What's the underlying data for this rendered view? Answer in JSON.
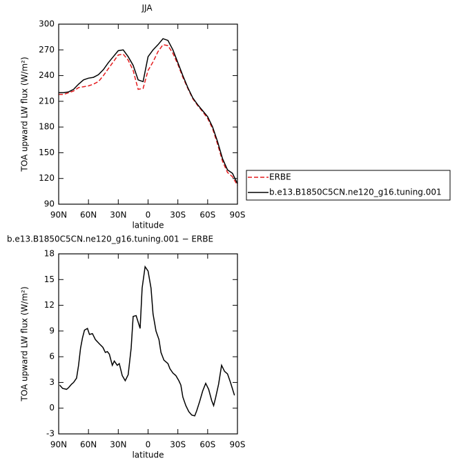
{
  "chart_data": [
    {
      "type": "line",
      "title": "JJA",
      "ylabel": "TOA upward LW flux (W/m²)",
      "xlabel": "latitude",
      "x": [
        90,
        85,
        80,
        75,
        70,
        65,
        60,
        55,
        50,
        45,
        40,
        35,
        30,
        25,
        20,
        15,
        10,
        5,
        0,
        -5,
        -10,
        -15,
        -20,
        -25,
        -30,
        -35,
        -40,
        -45,
        -50,
        -55,
        -60,
        -65,
        -70,
        -75,
        -80,
        -85,
        -90
      ],
      "series": [
        {
          "name": "ERBE",
          "color": "#e41a1c",
          "line_style": "dashed",
          "values": [
            218,
            218,
            220,
            222,
            226,
            227,
            228,
            230,
            233,
            240,
            248,
            256,
            264,
            265,
            258,
            246,
            224,
            225,
            246,
            256,
            268,
            276,
            275,
            266,
            253,
            238,
            225,
            213,
            205,
            198,
            190,
            178,
            160,
            140,
            127,
            122,
            112
          ]
        },
        {
          "name": "b.e13.B1850C5CN.ne120_g16.tuning.001",
          "color": "#000000",
          "line_style": "solid",
          "values": [
            220,
            220,
            221,
            224,
            230,
            235,
            237,
            238,
            241,
            247,
            255,
            262,
            269,
            270,
            262,
            252,
            235,
            233,
            262,
            270,
            276,
            283,
            281,
            270,
            255,
            240,
            226,
            214,
            206,
            199,
            192,
            180,
            163,
            143,
            130,
            126,
            114
          ]
        }
      ],
      "xlim": [
        90,
        -90
      ],
      "xticks": [
        {
          "value": 90,
          "label": "90N"
        },
        {
          "value": 60,
          "label": "60N"
        },
        {
          "value": 30,
          "label": "30N"
        },
        0,
        {
          "value": -30,
          "label": "30S"
        },
        {
          "value": -60,
          "label": "60S"
        },
        {
          "value": -90,
          "label": "90S"
        }
      ],
      "ylim": [
        90,
        300
      ],
      "yticks": [
        90,
        120,
        150,
        180,
        210,
        240,
        270,
        300
      ],
      "legend": "right"
    },
    {
      "type": "line",
      "title": "b.e13.B1850C5CN.ne120_g16.tuning.001 − ERBE",
      "ylabel": "TOA upward LW flux (W/m²)",
      "xlabel": "latitude",
      "x": [
        89,
        86,
        82,
        80,
        77,
        75,
        72,
        70,
        68,
        66,
        64,
        61,
        59,
        56,
        53,
        49,
        45.5,
        43,
        41,
        39,
        36,
        34,
        31,
        29,
        26,
        23,
        20,
        17,
        15,
        12,
        8,
        6,
        3,
        0,
        -3,
        -5,
        -8,
        -11,
        -13,
        -16,
        -20,
        -22,
        -25,
        -28,
        -31,
        -33,
        -35,
        -38,
        -41,
        -44,
        -47,
        -49,
        -52,
        -55,
        -58,
        -61,
        -64,
        -66,
        -68,
        -71,
        -74,
        -77,
        -80,
        -83,
        -87
      ],
      "series": [
        {
          "color": "#000000",
          "line_style": "solid",
          "values": [
            2.7,
            2.3,
            2.2,
            2.4,
            2.8,
            3.0,
            3.5,
            5,
            7,
            8.2,
            9.1,
            9.3,
            8.6,
            8.7,
            8,
            7.5,
            7.1,
            6.5,
            6.6,
            6.3,
            5.0,
            5.5,
            5.0,
            5.2,
            3.8,
            3.2,
            3.9,
            7,
            10.7,
            10.8,
            9.3,
            14,
            16.5,
            16,
            14,
            11,
            9,
            8,
            6.5,
            5.6,
            5.2,
            4.6,
            4.1,
            3.8,
            3.2,
            2.7,
            1.3,
            0.3,
            -0.4,
            -0.8,
            -0.9,
            -0.3,
            0.8,
            2.0,
            2.9,
            2.2,
            0.9,
            0.3,
            1.2,
            2.8,
            5.0,
            4.3,
            4.0,
            3.0,
            1.5
          ]
        }
      ],
      "xlim": [
        90,
        -90
      ],
      "xticks": [
        {
          "value": 90,
          "label": "90N"
        },
        {
          "value": 60,
          "label": "60N"
        },
        {
          "value": 30,
          "label": "30N"
        },
        0,
        {
          "value": -30,
          "label": "30S"
        },
        {
          "value": -60,
          "label": "60S"
        },
        {
          "value": -90,
          "label": "90S"
        }
      ],
      "ylim": [
        -3,
        18
      ],
      "yticks": [
        -3,
        0,
        3,
        6,
        9,
        12,
        15,
        18
      ]
    }
  ]
}
